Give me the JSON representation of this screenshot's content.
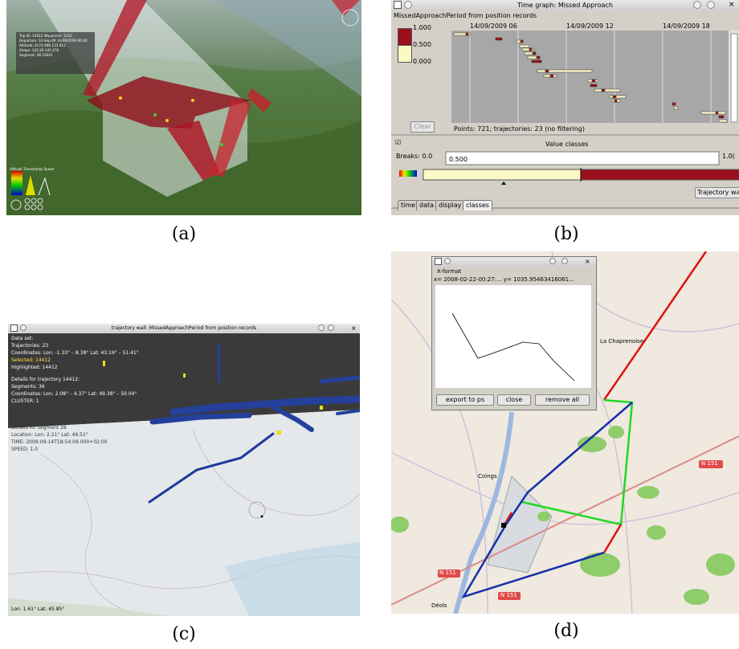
{
  "captions": {
    "a": "(a)",
    "b": "(b)",
    "c": "(c)",
    "d": "(d)"
  },
  "panel_a": {
    "info_lines": [
      "Trip ID: 14412   Waypoints: 1212",
      "Departure: 14-Sep-09  14/09/2009 06:00",
      "Altitude: 4174.496   123.412",
      "Shape: 143.26   145.476",
      "Segment: 28   23041"
    ],
    "legend_labels": [
      "Altitude",
      "Timestamps",
      "Speed"
    ]
  },
  "panel_b": {
    "window_title": "Time graph: Missed Approach",
    "subtitle": "MissedApproachPeriod from position records",
    "legend_values": [
      "1.000",
      "0.500",
      "0.000"
    ],
    "time_ticks": [
      "14/09/2009 06",
      "14/09/2009 12",
      "14/09/2009 18"
    ],
    "clear_label": "Clear",
    "status": "Points: 721; trajectories: 23 (no filtering)",
    "value_classes_label": "Value classes",
    "checkbox_mark": "☑",
    "breaks_label": "Breaks:",
    "breaks_min": "0.0",
    "break_value": "0.500",
    "breaks_max": "1.0(",
    "trajectory_button": "Trajectory wal",
    "tabs": [
      "time",
      "data",
      "display",
      "classes"
    ]
  },
  "panel_c": {
    "window_title": "trajectory wall: MissedApproachPeriod from position records",
    "info_lines": [
      "Data set:",
      "   Trajectories: 23",
      "   Coordinates: Lon: -1.33° – 8.38° Lat: 43.19° – 51.41°",
      "   Selected: 14412",
      "   Highlighted: 14412",
      "Details for trajectory 14412:",
      "   Segments: 36",
      "   Coordinates: Lon: 2.08° – 4.37° Lat: 49.38° – 50.04°",
      "   CLUSTER: 1",
      "Details for segment 28",
      "   Location: Lon: 2.21° Lat: 49.51°",
      "   TIME: 2009-09-14T18:54:09.000+02:00",
      "   SPEED: 1.0"
    ],
    "coords": "Lon: 1.61° Lat: 45.85°"
  },
  "panel_d": {
    "window_title": "X-format",
    "readout": "x= 2008-02-22-00:27:...  y= 1035.95463416061...",
    "buttons": [
      "export to ps",
      "close",
      "remove all"
    ],
    "places": [
      "La Chaprenoise",
      "Coings",
      "Déols",
      "N 151",
      "N 151",
      "N 151"
    ]
  },
  "colors": {
    "dark_red": "#9b0f1c",
    "light_yellow": "#fdf9c4",
    "trajectory_blue": "#1d3a9a",
    "route_red": "#e01010",
    "route_green": "#22d822",
    "route_blue": "#1531a8"
  }
}
